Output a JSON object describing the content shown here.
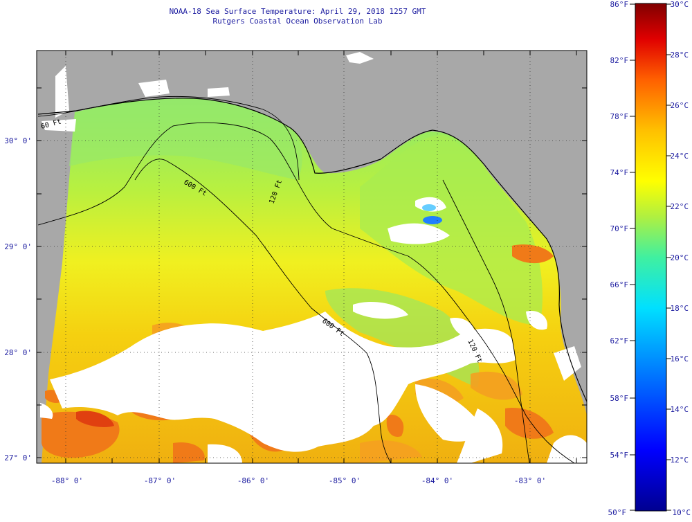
{
  "header": {
    "title": "NOAA-18 Sea Surface Temperature:  April 29, 2018 1257 GMT",
    "subtitle": "Rutgers Coastal Ocean Observation Lab"
  },
  "map": {
    "lat_labels": [
      "30° 0'",
      "29° 0'",
      "28° 0'",
      "27° 0'"
    ],
    "lon_labels": [
      "-88° 0'",
      "-87° 0'",
      "-86° 0'",
      "-85° 0'",
      "-84° 0'",
      "-83° 0'"
    ],
    "isobath_labels": [
      "60 Ft",
      "120 Ft",
      "600 Ft",
      "600 Ft",
      "120 Ft"
    ]
  },
  "colorbar": {
    "fahrenheit_labels": [
      "86°F",
      "82°F",
      "78°F",
      "74°F",
      "70°F",
      "66°F",
      "62°F",
      "58°F",
      "54°F",
      "50°F"
    ],
    "celsius_labels": [
      "30°C",
      "28°C",
      "26°C",
      "24°C",
      "22°C",
      "20°C",
      "18°C",
      "16°C",
      "14°C",
      "12°C",
      "10°C"
    ],
    "colors": [
      "#000090",
      "#0000ff",
      "#0090ff",
      "#00e0ff",
      "#40f0a0",
      "#b0f040",
      "#ffff00",
      "#ffc000",
      "#ff6000",
      "#e00000",
      "#800000"
    ]
  },
  "colors": {
    "land": "#a8a8a8",
    "cloud": "#ffffff",
    "warm_water": "#f2dc10",
    "cool_water": "#9aea4a"
  }
}
